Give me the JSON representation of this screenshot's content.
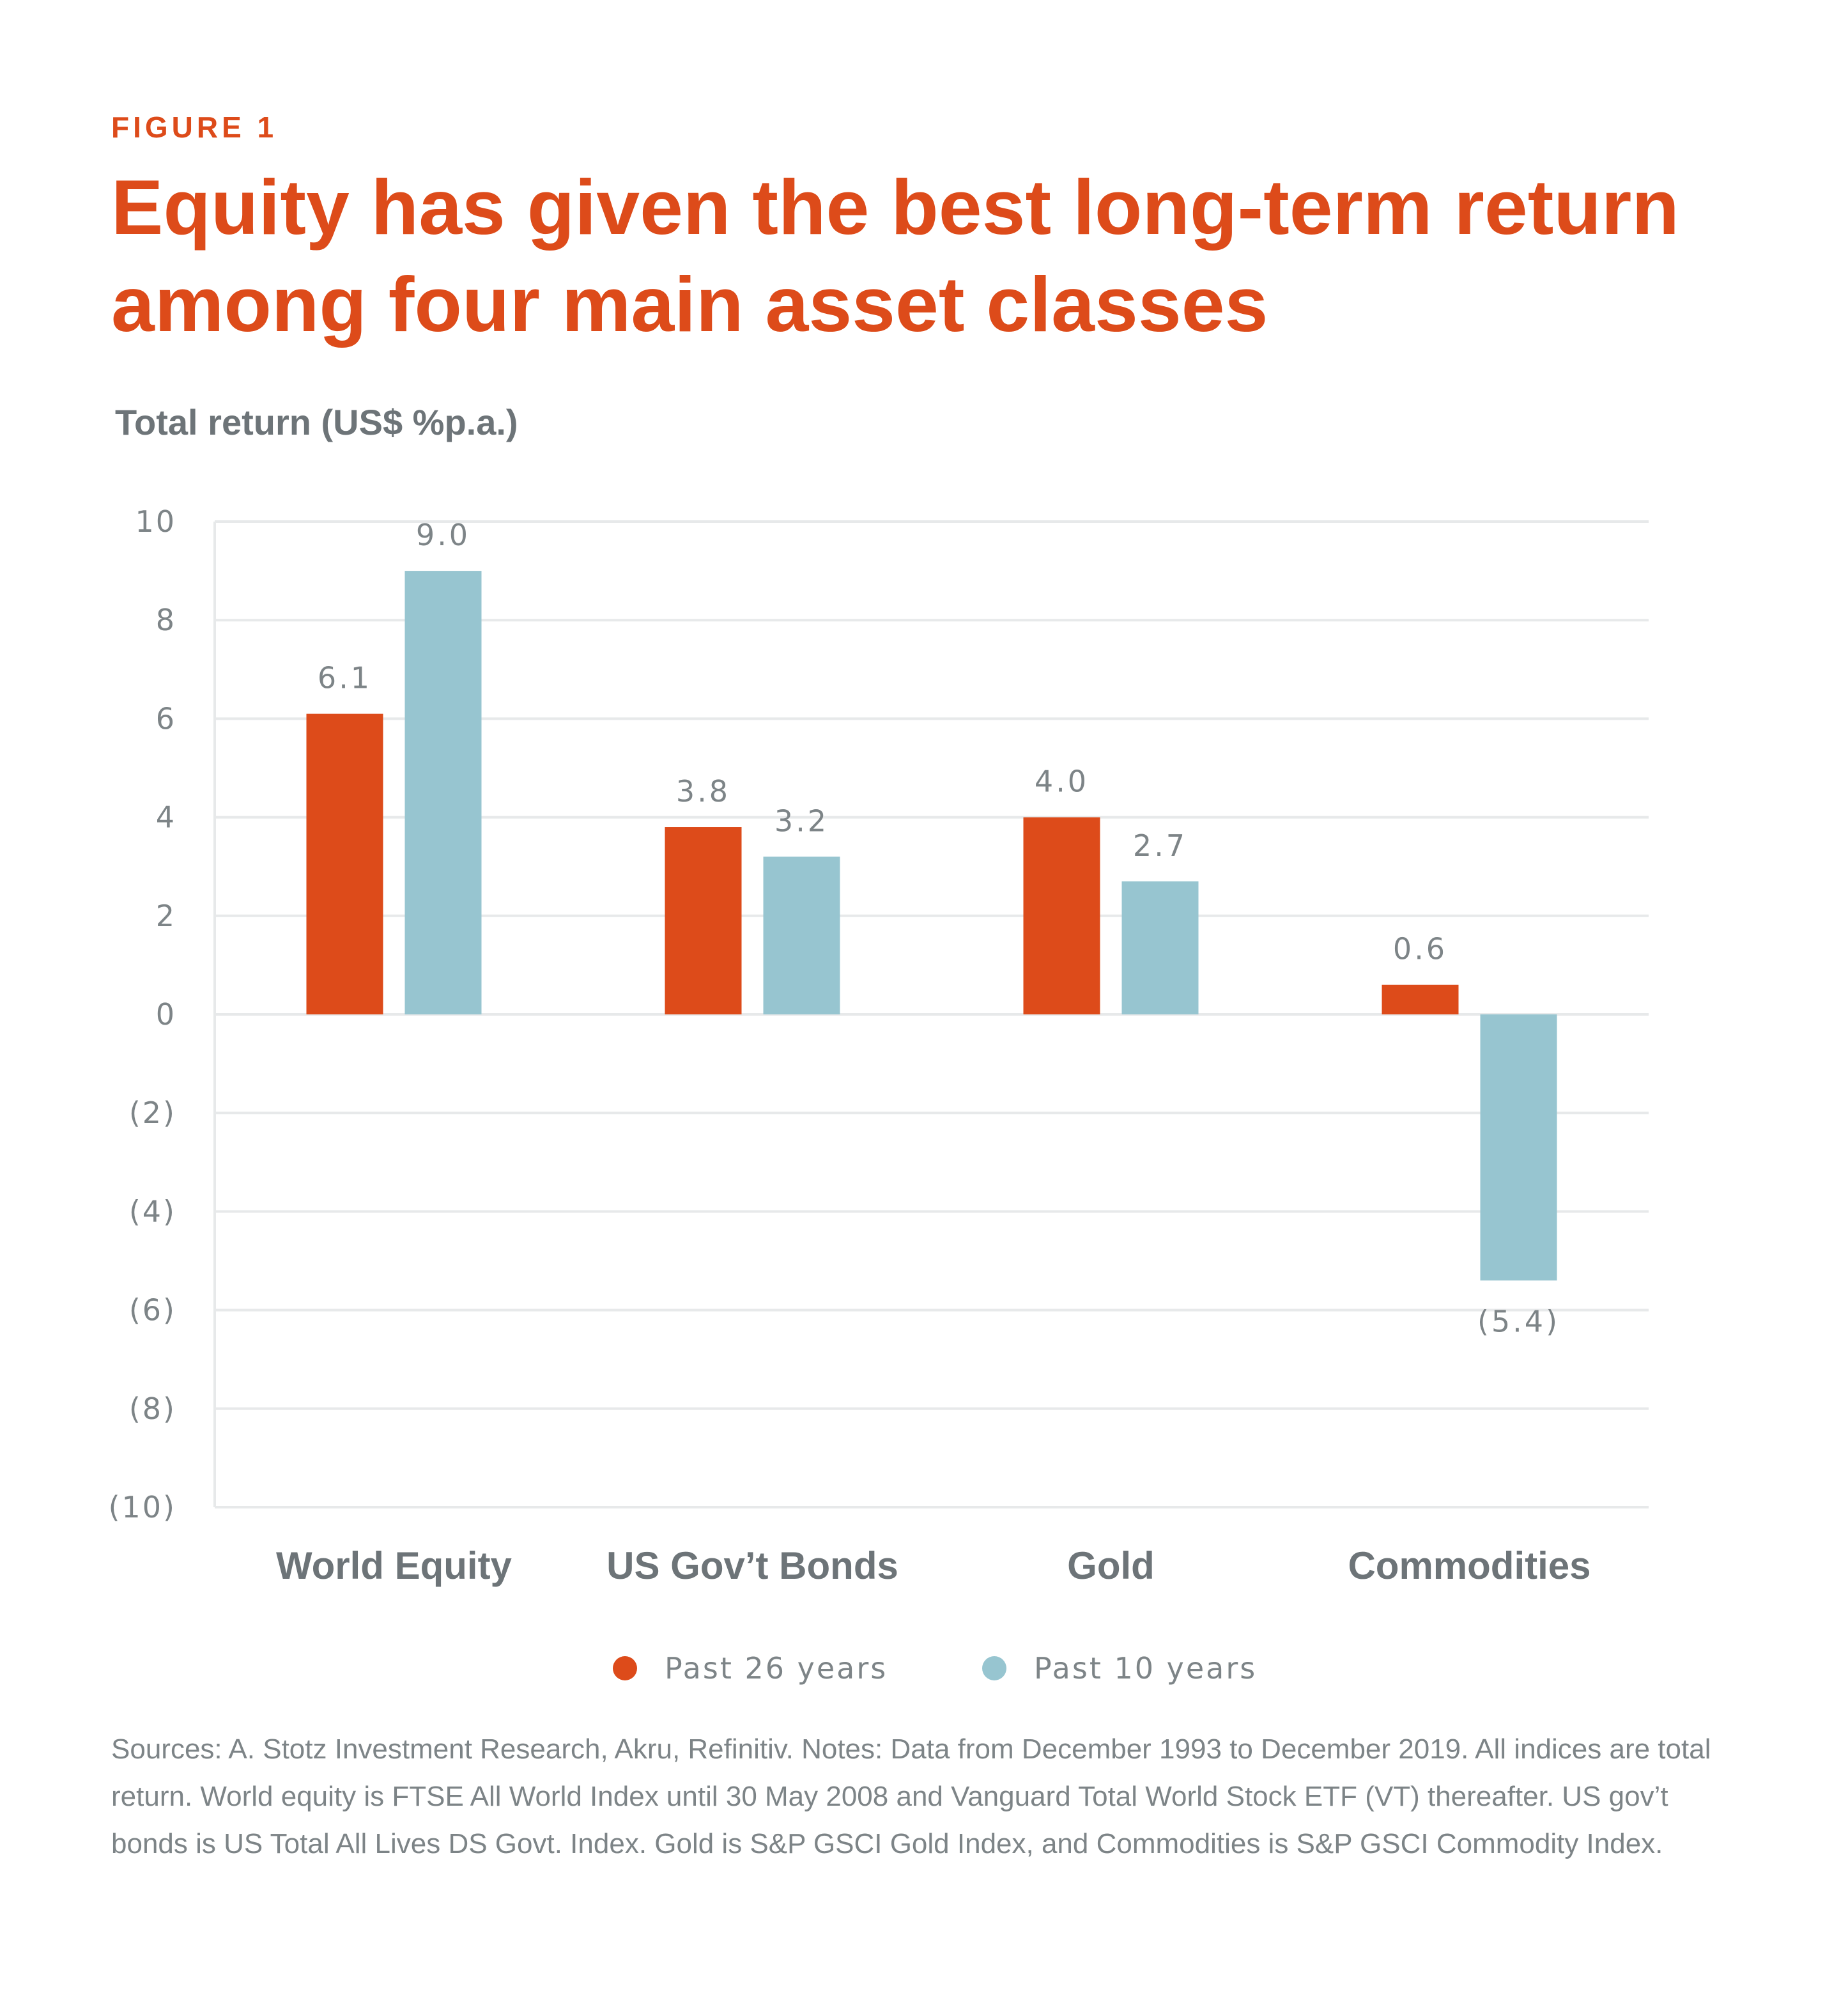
{
  "figure_label": "FIGURE 1",
  "chart_data": {
    "type": "bar",
    "title": "Equity has given the best long-term return among four main asset classes",
    "ylabel": "Total return (US$ %p.a.)",
    "xlabel": "",
    "categories": [
      "World Equity",
      "US Gov’t Bonds",
      "Gold",
      "Commodities"
    ],
    "series": [
      {
        "name": "Past 26 years",
        "color": "#dd4b1a",
        "values": [
          6.1,
          3.8,
          4.0,
          0.6
        ],
        "labels": [
          "6.1",
          "3.8",
          "4.0",
          "0.6"
        ]
      },
      {
        "name": "Past 10 years",
        "color": "#97c5d0",
        "values": [
          9.0,
          3.2,
          2.7,
          -5.4
        ],
        "labels": [
          "9.0",
          "3.2",
          "2.7",
          "(5.4)"
        ]
      }
    ],
    "ylim": [
      -10,
      10
    ],
    "yticks": [
      10,
      8,
      6,
      4,
      2,
      0,
      -2,
      -4,
      -6,
      -8,
      -10
    ],
    "ytick_labels": [
      "10",
      "8",
      "6",
      "4",
      "2",
      "0",
      "(2)",
      "(4)",
      "(6)",
      "(8)",
      "(10)"
    ],
    "grid": true,
    "legend_position": "bottom-center"
  },
  "source_note": "Sources: A. Stotz Investment Research, Akru, Refinitiv. Notes: Data from December 1993 to December 2019. All indices are total return. World equity is FTSE All World Index until 30 May 2008 and Vanguard Total World Stock ETF (VT) thereafter. US gov’t bonds is US Total All Lives DS Govt. Index. Gold is S&P GSCI Gold Index, and Commodities is S&P GSCI Commodity Index."
}
